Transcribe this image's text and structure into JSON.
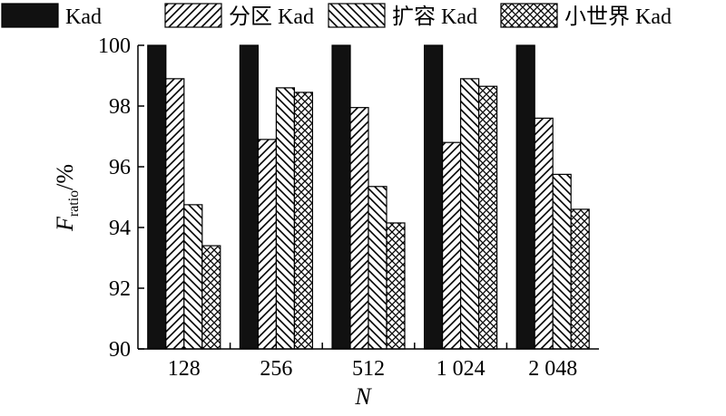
{
  "chart_data": {
    "type": "bar",
    "categories": [
      "128",
      "256",
      "512",
      "1 024",
      "2 048"
    ],
    "series": [
      {
        "name": "Kad",
        "pattern": "solid",
        "values": [
          100,
          100,
          100,
          100,
          100
        ]
      },
      {
        "name": "分区 Kad",
        "pattern": "forward-hatch",
        "values": [
          98.9,
          96.9,
          97.95,
          96.8,
          97.6
        ]
      },
      {
        "name": "扩容 Kad",
        "pattern": "back-hatch",
        "values": [
          94.75,
          98.6,
          95.35,
          98.9,
          95.75
        ]
      },
      {
        "name": "小世界 Kad",
        "pattern": "cross-hatch",
        "values": [
          93.4,
          98.45,
          94.15,
          98.65,
          94.6
        ]
      }
    ],
    "ylim": [
      90,
      100
    ],
    "yticks": [
      "90",
      "92",
      "94",
      "96",
      "98",
      "100"
    ],
    "xlabel": "N",
    "ylabel": {
      "main": "F",
      "subscript": "ratio",
      "suffix": "/%"
    },
    "legend_position": "top",
    "grid": false,
    "colors": {
      "bar_fill": "#111111",
      "stroke": "#000000"
    }
  }
}
